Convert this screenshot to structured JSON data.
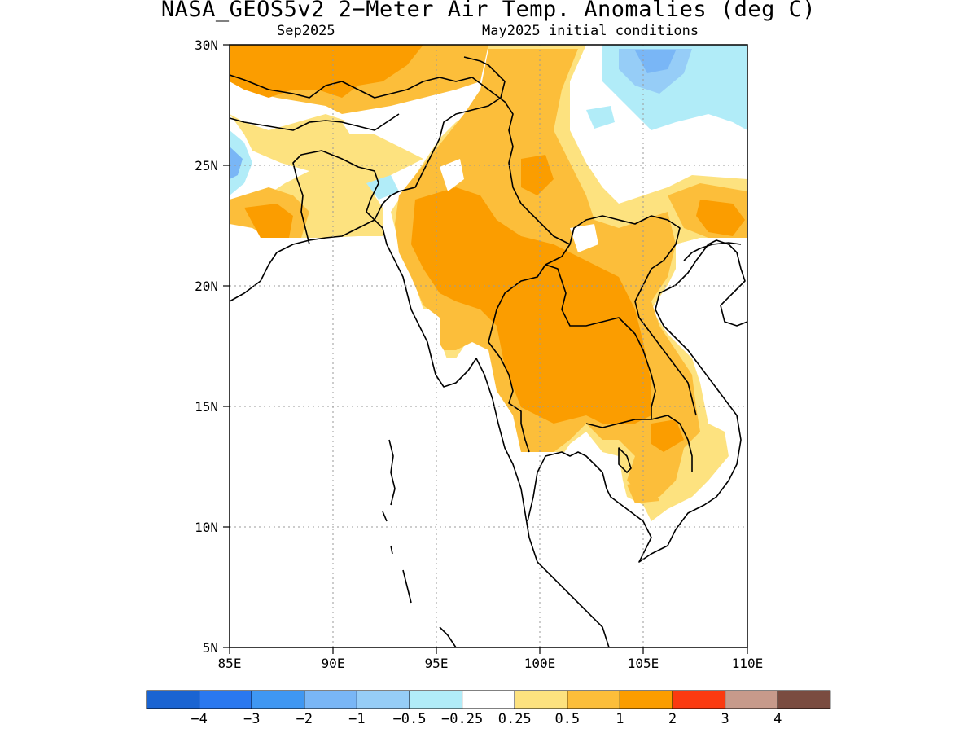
{
  "title": "NASA_GEOS5v2 2−Meter Air Temp. Anomalies (deg C)",
  "subtitle_left": "Sep2025",
  "subtitle_right": "May2025 initial conditions",
  "axes": {
    "lon_ticks": [
      "85E",
      "90E",
      "95E",
      "100E",
      "105E",
      "110E"
    ],
    "lat_ticks": [
      "30N",
      "25N",
      "20N",
      "15N",
      "10N",
      "5N"
    ],
    "lon_range": [
      85,
      110
    ],
    "lat_range": [
      5,
      30
    ],
    "grid": true
  },
  "colorbar": {
    "colors": [
      "#1a64d2",
      "#2a78ef",
      "#3f97f2",
      "#79b6f6",
      "#96cdf7",
      "#b1ecf8",
      "#ffffff",
      "#fde27f",
      "#fcbe3a",
      "#fb9d00",
      "#fb3a10",
      "#c79a8b",
      "#7a4c40"
    ],
    "labels": [
      "−4",
      "−3",
      "−2",
      "−1",
      "−0.5",
      "−0.25",
      "0.25",
      "0.5",
      "1",
      "2",
      "3",
      "4"
    ]
  },
  "legend_colors": {
    "ocean_masked": "#ffffff",
    "coastline": "#000000"
  }
}
